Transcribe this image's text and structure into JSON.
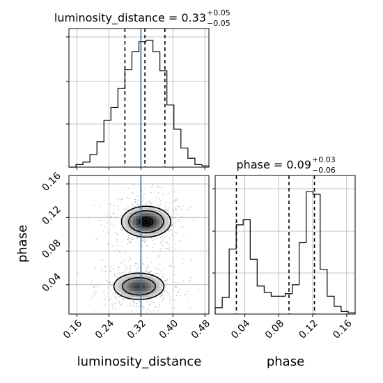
{
  "chart_data": {
    "type": "corner",
    "parameters": [
      "luminosity_distance",
      "phase"
    ],
    "truth": {
      "luminosity_distance": 0.32,
      "phase_line_color": "#3a6f96"
    },
    "colors": {
      "truth": "#3a6f96",
      "hist": "#000000",
      "grid": "#b0b0b0"
    },
    "grid": true,
    "titles": {
      "luminosity_distance": {
        "prefix": "luminosity_distance = 0.33",
        "upper": "+0.05",
        "lower": "−0.05"
      },
      "phase": {
        "prefix": "phase = 0.09",
        "upper": "+0.03",
        "lower": "−0.06"
      }
    },
    "axis_labels": {
      "x1": "luminosity_distance",
      "x2": "phase",
      "y_scatter": "phase"
    },
    "luminosity_distance": {
      "range": [
        0.14,
        0.49
      ],
      "ticks": [
        "0.16",
        "0.24",
        "0.32",
        "0.40",
        "0.48"
      ],
      "tick_values": [
        0.16,
        0.24,
        0.32,
        0.4,
        0.48
      ],
      "quantiles": [
        0.28,
        0.33,
        0.38
      ],
      "hist_edges": [
        0.14,
        0.1575,
        0.175,
        0.1925,
        0.21,
        0.2275,
        0.245,
        0.2625,
        0.28,
        0.2975,
        0.315,
        0.3325,
        0.35,
        0.3675,
        0.385,
        0.4025,
        0.42,
        0.4375,
        0.455,
        0.4725,
        0.49
      ],
      "hist_counts": [
        0.0,
        0.02,
        0.04,
        0.1,
        0.2,
        0.37,
        0.47,
        0.62,
        0.77,
        0.91,
        0.99,
        1.0,
        0.91,
        0.76,
        0.49,
        0.3,
        0.15,
        0.07,
        0.02,
        0.01
      ]
    },
    "phase": {
      "range": [
        0.005,
        0.17
      ],
      "ticks": [
        "0.04",
        "0.08",
        "0.12",
        "0.16"
      ],
      "tick_values": [
        0.04,
        0.08,
        0.12,
        0.16
      ],
      "quantiles": [
        0.03,
        0.092,
        0.122
      ],
      "hist_edges": [
        0.005,
        0.0133,
        0.0215,
        0.0298,
        0.038,
        0.0463,
        0.0545,
        0.0628,
        0.071,
        0.0793,
        0.0875,
        0.0958,
        0.104,
        0.1123,
        0.1205,
        0.1288,
        0.137,
        0.1453,
        0.1535,
        0.1618,
        0.17
      ],
      "hist_counts": [
        0.05,
        0.13,
        0.51,
        0.7,
        0.74,
        0.43,
        0.22,
        0.17,
        0.14,
        0.14,
        0.16,
        0.23,
        0.56,
        0.96,
        0.94,
        0.35,
        0.14,
        0.06,
        0.02,
        0.01
      ]
    },
    "density_2d": {
      "x_param": "luminosity_distance",
      "y_param": "phase",
      "modes": [
        {
          "x": 0.333,
          "y": 0.115,
          "sx": 0.037,
          "sy": 0.011,
          "weight": 1.0
        },
        {
          "x": 0.315,
          "y": 0.038,
          "sx": 0.04,
          "sy": 0.01,
          "weight": 0.85
        }
      ],
      "contour_levels": [
        0.25,
        0.5,
        0.9
      ]
    }
  }
}
